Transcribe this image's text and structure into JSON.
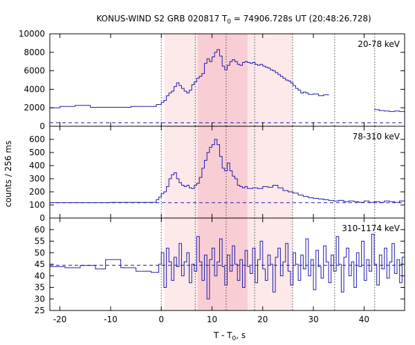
{
  "chart_data": {
    "type": "line",
    "title": {
      "prefix": "KONUS-WIND S2 GRB 020817 T",
      "sub": "0",
      "suffix": " = 74906.728s UT (20:48:26.728)"
    },
    "xlabel": {
      "prefix": "T - T",
      "sub": "0",
      "suffix": ", s"
    },
    "ylabel": "counts / 256 ms",
    "xlim": [
      -22,
      48
    ],
    "x_ticks": [
      -20,
      -10,
      0,
      10,
      20,
      30,
      40
    ],
    "colors": {
      "curve": "#1a1aa8",
      "background_line": "#1a1aa8",
      "shade_outer": "#fde8ea",
      "shade_inner": "#f9cdd4",
      "vline": "#444444",
      "frame": "#000000"
    },
    "shaded_intervals": [
      {
        "x0": 0.6,
        "x1": 25.9,
        "level": "outer"
      },
      {
        "x0": 7.2,
        "x1": 17.0,
        "level": "inner"
      }
    ],
    "vertical_lines": [
      0,
      6.7,
      12.8,
      18.4,
      25.9,
      34.2,
      42.1
    ],
    "panels": [
      {
        "band": "20-78 keV",
        "ylim": [
          0,
          10000
        ],
        "y_ticks": [
          0,
          2000,
          4000,
          6000,
          8000,
          10000
        ],
        "background_level": 380,
        "series": [
          {
            "x": -22,
            "y": 2000
          },
          {
            "x": -20,
            "y": 2150
          },
          {
            "x": -17,
            "y": 2250
          },
          {
            "x": -14,
            "y": 2050
          },
          {
            "x": -11,
            "y": 2050
          },
          {
            "x": -6,
            "y": 2150
          },
          {
            "x": -1,
            "y": 2350
          },
          {
            "x": 0,
            "y": 2600
          },
          {
            "x": 0.5,
            "y": 2800
          },
          {
            "x": 1,
            "y": 3300
          },
          {
            "x": 1.5,
            "y": 3600
          },
          {
            "x": 2,
            "y": 3800
          },
          {
            "x": 2.5,
            "y": 4300
          },
          {
            "x": 3,
            "y": 4700
          },
          {
            "x": 3.5,
            "y": 4400
          },
          {
            "x": 4,
            "y": 4100
          },
          {
            "x": 4.5,
            "y": 3800
          },
          {
            "x": 5,
            "y": 3600
          },
          {
            "x": 5.5,
            "y": 3900
          },
          {
            "x": 6,
            "y": 4500
          },
          {
            "x": 6.5,
            "y": 4800
          },
          {
            "x": 7,
            "y": 5200
          },
          {
            "x": 7.5,
            "y": 5400
          },
          {
            "x": 8,
            "y": 5700
          },
          {
            "x": 8.5,
            "y": 6800
          },
          {
            "x": 9,
            "y": 7300
          },
          {
            "x": 9.5,
            "y": 7000
          },
          {
            "x": 10,
            "y": 7500
          },
          {
            "x": 10.5,
            "y": 8000
          },
          {
            "x": 11,
            "y": 8300
          },
          {
            "x": 11.5,
            "y": 7600
          },
          {
            "x": 12,
            "y": 6500
          },
          {
            "x": 12.5,
            "y": 6100
          },
          {
            "x": 13,
            "y": 6600
          },
          {
            "x": 13.5,
            "y": 7000
          },
          {
            "x": 14,
            "y": 7200
          },
          {
            "x": 14.5,
            "y": 7000
          },
          {
            "x": 15,
            "y": 6700
          },
          {
            "x": 15.5,
            "y": 6600
          },
          {
            "x": 16,
            "y": 6900
          },
          {
            "x": 16.5,
            "y": 7000
          },
          {
            "x": 17,
            "y": 6900
          },
          {
            "x": 17.5,
            "y": 6800
          },
          {
            "x": 18,
            "y": 6900
          },
          {
            "x": 18.5,
            "y": 6700
          },
          {
            "x": 19,
            "y": 6600
          },
          {
            "x": 19.5,
            "y": 6700
          },
          {
            "x": 20,
            "y": 6500
          },
          {
            "x": 20.5,
            "y": 6400
          },
          {
            "x": 21,
            "y": 6300
          },
          {
            "x": 21.5,
            "y": 6100
          },
          {
            "x": 22,
            "y": 6000
          },
          {
            "x": 22.5,
            "y": 5800
          },
          {
            "x": 23,
            "y": 5600
          },
          {
            "x": 23.5,
            "y": 5400
          },
          {
            "x": 24,
            "y": 5200
          },
          {
            "x": 24.5,
            "y": 5000
          },
          {
            "x": 25,
            "y": 4900
          },
          {
            "x": 25.5,
            "y": 4700
          },
          {
            "x": 26,
            "y": 4400
          },
          {
            "x": 26.5,
            "y": 4100
          },
          {
            "x": 27,
            "y": 3900
          },
          {
            "x": 27.5,
            "y": 3600
          },
          {
            "x": 28,
            "y": 3700
          },
          {
            "x": 28.5,
            "y": 3600
          },
          {
            "x": 29,
            "y": 3450
          },
          {
            "x": 30,
            "y": 3500
          },
          {
            "x": 31,
            "y": 3300
          },
          {
            "x": 32,
            "y": 3400
          },
          {
            "x": 33,
            "y": 3450
          },
          null,
          {
            "x": 42,
            "y": 1800
          },
          {
            "x": 43,
            "y": 1700
          },
          {
            "x": 44,
            "y": 1650
          },
          {
            "x": 45,
            "y": 1600
          },
          {
            "x": 46,
            "y": 1650
          },
          {
            "x": 47,
            "y": 1600
          },
          {
            "x": 48,
            "y": 1550
          }
        ]
      },
      {
        "band": "78-310 keV",
        "ylim": [
          0,
          700
        ],
        "y_ticks": [
          0,
          100,
          200,
          300,
          400,
          500,
          600
        ],
        "background_level": 117,
        "series": [
          {
            "x": -22,
            "y": 118
          },
          {
            "x": -16,
            "y": 118
          },
          {
            "x": -10,
            "y": 120
          },
          {
            "x": -4,
            "y": 120
          },
          {
            "x": -1,
            "y": 140
          },
          {
            "x": -0.5,
            "y": 160
          },
          {
            "x": 0,
            "y": 185
          },
          {
            "x": 0.5,
            "y": 200
          },
          {
            "x": 1,
            "y": 240
          },
          {
            "x": 1.5,
            "y": 300
          },
          {
            "x": 2,
            "y": 330
          },
          {
            "x": 2.5,
            "y": 345
          },
          {
            "x": 3,
            "y": 300
          },
          {
            "x": 3.5,
            "y": 270
          },
          {
            "x": 4,
            "y": 250
          },
          {
            "x": 4.5,
            "y": 240
          },
          {
            "x": 5,
            "y": 250
          },
          {
            "x": 5.5,
            "y": 230
          },
          {
            "x": 6,
            "y": 225
          },
          {
            "x": 6.5,
            "y": 250
          },
          {
            "x": 7,
            "y": 265
          },
          {
            "x": 7.5,
            "y": 310
          },
          {
            "x": 8,
            "y": 380
          },
          {
            "x": 8.5,
            "y": 440
          },
          {
            "x": 9,
            "y": 500
          },
          {
            "x": 9.5,
            "y": 540
          },
          {
            "x": 10,
            "y": 560
          },
          {
            "x": 10.5,
            "y": 600
          },
          {
            "x": 11,
            "y": 560
          },
          {
            "x": 11.5,
            "y": 470
          },
          {
            "x": 12,
            "y": 380
          },
          {
            "x": 12.5,
            "y": 360
          },
          {
            "x": 13,
            "y": 420
          },
          {
            "x": 13.5,
            "y": 360
          },
          {
            "x": 14,
            "y": 320
          },
          {
            "x": 14.5,
            "y": 300
          },
          {
            "x": 15,
            "y": 250
          },
          {
            "x": 15.5,
            "y": 240
          },
          {
            "x": 16,
            "y": 230
          },
          {
            "x": 16.5,
            "y": 240
          },
          {
            "x": 17,
            "y": 225
          },
          {
            "x": 18,
            "y": 230
          },
          {
            "x": 19,
            "y": 225
          },
          {
            "x": 20,
            "y": 240
          },
          {
            "x": 21,
            "y": 235
          },
          {
            "x": 22,
            "y": 250
          },
          {
            "x": 23,
            "y": 230
          },
          {
            "x": 24,
            "y": 210
          },
          {
            "x": 25,
            "y": 200
          },
          {
            "x": 26,
            "y": 190
          },
          {
            "x": 27,
            "y": 175
          },
          {
            "x": 28,
            "y": 165
          },
          {
            "x": 29,
            "y": 155
          },
          {
            "x": 30,
            "y": 150
          },
          {
            "x": 31,
            "y": 145
          },
          {
            "x": 32,
            "y": 140
          },
          {
            "x": 33,
            "y": 135
          },
          {
            "x": 34,
            "y": 130
          },
          {
            "x": 35,
            "y": 135
          },
          {
            "x": 36,
            "y": 125
          },
          {
            "x": 37,
            "y": 130
          },
          {
            "x": 38,
            "y": 125
          },
          {
            "x": 39,
            "y": 120
          },
          {
            "x": 40,
            "y": 130
          },
          {
            "x": 41,
            "y": 120
          },
          {
            "x": 42,
            "y": 125
          },
          {
            "x": 43,
            "y": 120
          },
          {
            "x": 44,
            "y": 130
          },
          {
            "x": 45,
            "y": 125
          },
          {
            "x": 46,
            "y": 120
          },
          {
            "x": 47,
            "y": 130
          },
          {
            "x": 48,
            "y": 125
          }
        ]
      },
      {
        "band": "310-1174 keV",
        "ylim": [
          25,
          65
        ],
        "y_ticks": [
          25,
          30,
          35,
          40,
          45,
          50,
          55,
          60
        ],
        "background_level": 44.6,
        "series": [
          {
            "x": -22,
            "y": 44
          },
          {
            "x": -19,
            "y": 43.5
          },
          {
            "x": -16,
            "y": 44.5
          },
          {
            "x": -13,
            "y": 43
          },
          {
            "x": -11,
            "y": 47
          },
          {
            "x": -8,
            "y": 43.5
          },
          {
            "x": -5,
            "y": 42
          },
          {
            "x": -2,
            "y": 41.5
          },
          {
            "x": -0.5,
            "y": 45
          },
          {
            "x": 0,
            "y": 50
          },
          {
            "x": 0.5,
            "y": 35
          },
          {
            "x": 1,
            "y": 52
          },
          {
            "x": 1.5,
            "y": 46
          },
          {
            "x": 2,
            "y": 38
          },
          {
            "x": 2.5,
            "y": 48
          },
          {
            "x": 3,
            "y": 44
          },
          {
            "x": 3.5,
            "y": 54
          },
          {
            "x": 4,
            "y": 40
          },
          {
            "x": 4.5,
            "y": 46
          },
          {
            "x": 5,
            "y": 50
          },
          {
            "x": 5.5,
            "y": 37
          },
          {
            "x": 6,
            "y": 45
          },
          {
            "x": 6.5,
            "y": 42
          },
          {
            "x": 7,
            "y": 57
          },
          {
            "x": 7.5,
            "y": 46
          },
          {
            "x": 8,
            "y": 38
          },
          {
            "x": 8.5,
            "y": 49
          },
          {
            "x": 9,
            "y": 30
          },
          {
            "x": 9.5,
            "y": 47
          },
          {
            "x": 10,
            "y": 52
          },
          {
            "x": 10.5,
            "y": 40
          },
          {
            "x": 11,
            "y": 46
          },
          {
            "x": 11.5,
            "y": 56
          },
          {
            "x": 12,
            "y": 44
          },
          {
            "x": 12.5,
            "y": 36
          },
          {
            "x": 13,
            "y": 49
          },
          {
            "x": 13.5,
            "y": 42
          },
          {
            "x": 14,
            "y": 53
          },
          {
            "x": 14.5,
            "y": 45
          },
          {
            "x": 15,
            "y": 38
          },
          {
            "x": 15.5,
            "y": 47
          },
          {
            "x": 16,
            "y": 35
          },
          {
            "x": 16.5,
            "y": 51
          },
          {
            "x": 17,
            "y": 44
          },
          {
            "x": 17.5,
            "y": 41
          },
          {
            "x": 18,
            "y": 52
          },
          {
            "x": 18.5,
            "y": 37
          },
          {
            "x": 19,
            "y": 47
          },
          {
            "x": 19.5,
            "y": 55
          },
          {
            "x": 20,
            "y": 43
          },
          {
            "x": 20.5,
            "y": 38
          },
          {
            "x": 21,
            "y": 49
          },
          {
            "x": 21.5,
            "y": 45
          },
          {
            "x": 22,
            "y": 33
          },
          {
            "x": 22.5,
            "y": 48
          },
          {
            "x": 23,
            "y": 52
          },
          {
            "x": 23.5,
            "y": 40
          },
          {
            "x": 24,
            "y": 46
          },
          {
            "x": 24.5,
            "y": 54
          },
          {
            "x": 25,
            "y": 42
          },
          {
            "x": 25.5,
            "y": 36
          },
          {
            "x": 26,
            "y": 50
          },
          {
            "x": 26.5,
            "y": 45
          },
          {
            "x": 27,
            "y": 38
          },
          {
            "x": 27.5,
            "y": 49
          },
          {
            "x": 28,
            "y": 43
          },
          {
            "x": 28.5,
            "y": 56
          },
          {
            "x": 29,
            "y": 40
          },
          {
            "x": 29.5,
            "y": 47
          },
          {
            "x": 30,
            "y": 34
          },
          {
            "x": 30.5,
            "y": 51
          },
          {
            "x": 31,
            "y": 44
          },
          {
            "x": 31.5,
            "y": 39
          },
          {
            "x": 32,
            "y": 53
          },
          {
            "x": 32.5,
            "y": 46
          },
          {
            "x": 33,
            "y": 37
          },
          {
            "x": 33.5,
            "y": 49
          },
          {
            "x": 34,
            "y": 42
          },
          {
            "x": 34.5,
            "y": 57
          },
          {
            "x": 35,
            "y": 45
          },
          {
            "x": 35.5,
            "y": 33
          },
          {
            "x": 36,
            "y": 48
          },
          {
            "x": 36.5,
            "y": 52
          },
          {
            "x": 37,
            "y": 40
          },
          {
            "x": 37.5,
            "y": 46
          },
          {
            "x": 38,
            "y": 35
          },
          {
            "x": 38.5,
            "y": 50
          },
          {
            "x": 39,
            "y": 44
          },
          {
            "x": 39.5,
            "y": 55
          },
          {
            "x": 40,
            "y": 38
          },
          {
            "x": 40.5,
            "y": 47
          },
          {
            "x": 41,
            "y": 42
          },
          {
            "x": 41.5,
            "y": 58
          },
          {
            "x": 42,
            "y": 45
          },
          {
            "x": 42.5,
            "y": 36
          },
          {
            "x": 43,
            "y": 49
          },
          {
            "x": 43.5,
            "y": 43
          },
          {
            "x": 44,
            "y": 52
          },
          {
            "x": 44.5,
            "y": 39
          },
          {
            "x": 45,
            "y": 46
          },
          {
            "x": 45.5,
            "y": 54
          },
          {
            "x": 46,
            "y": 41
          },
          {
            "x": 46.5,
            "y": 47
          },
          {
            "x": 47,
            "y": 37
          },
          {
            "x": 47.5,
            "y": 48
          },
          {
            "x": 48,
            "y": 44
          }
        ]
      }
    ]
  }
}
